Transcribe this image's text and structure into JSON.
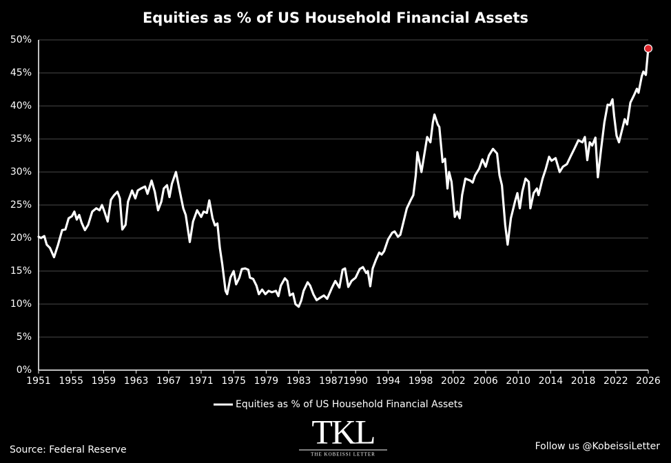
{
  "chart_data": {
    "type": "line",
    "title": "Equities as % of US Household Financial Assets",
    "xlim": [
      1951,
      2026
    ],
    "xticks": [
      1951,
      1955,
      1959,
      1963,
      1967,
      1971,
      1975,
      1979,
      1983,
      1987,
      1990,
      1994,
      1998,
      2002,
      2006,
      2010,
      2014,
      2018,
      2022,
      2026
    ],
    "ylim": [
      0,
      50
    ],
    "yticks": [
      {
        "value": 0,
        "label": "0%"
      },
      {
        "value": 5,
        "label": "5%"
      },
      {
        "value": 10,
        "label": "10%"
      },
      {
        "value": 15,
        "label": "15%"
      },
      {
        "value": 20,
        "label": "20%"
      },
      {
        "value": 25,
        "label": "25%"
      },
      {
        "value": 30,
        "label": "30%"
      },
      {
        "value": 35,
        "label": "35%"
      },
      {
        "value": 40,
        "label": "40%"
      },
      {
        "value": 45,
        "label": "45%"
      },
      {
        "value": 50,
        "label": "50%"
      }
    ],
    "grid": true,
    "highlight_color": "#e0242b",
    "series": [
      {
        "name": "Equities as % of US Household Financial Assets",
        "color": "#ffffff",
        "x": [
          1951.0,
          1951.3,
          1951.7,
          1952.0,
          1952.4,
          1952.9,
          1953.4,
          1953.9,
          1954.3,
          1954.7,
          1955.1,
          1955.4,
          1955.7,
          1956.0,
          1956.3,
          1956.7,
          1957.1,
          1957.6,
          1958.1,
          1958.5,
          1958.8,
          1959.1,
          1959.5,
          1959.9,
          1960.3,
          1960.7,
          1961.0,
          1961.3,
          1961.7,
          1962.0,
          1962.5,
          1962.9,
          1963.2,
          1963.6,
          1964.1,
          1964.4,
          1964.9,
          1965.3,
          1965.7,
          1966.1,
          1966.4,
          1966.8,
          1967.1,
          1967.4,
          1967.9,
          1968.3,
          1968.8,
          1969.1,
          1969.6,
          1970.0,
          1970.5,
          1971.0,
          1971.3,
          1971.7,
          1972.0,
          1972.4,
          1972.7,
          1973.0,
          1973.3,
          1973.6,
          1974.0,
          1974.2,
          1974.6,
          1975.0,
          1975.3,
          1975.7,
          1976.0,
          1976.4,
          1976.8,
          1977.0,
          1977.4,
          1977.8,
          1978.1,
          1978.5,
          1978.9,
          1979.3,
          1979.7,
          1980.2,
          1980.5,
          1980.8,
          1981.3,
          1981.6,
          1981.9,
          1982.3,
          1982.6,
          1983.0,
          1983.3,
          1983.6,
          1984.1,
          1984.4,
          1984.8,
          1985.2,
          1985.7,
          1986.1,
          1986.5,
          1987.1,
          1987.5,
          1988.0,
          1988.4,
          1988.7,
          1989.1,
          1989.5,
          1990.0,
          1990.5,
          1990.9,
          1991.3,
          1991.5,
          1991.8,
          1992.1,
          1992.5,
          1992.9,
          1993.2,
          1993.5,
          1994.0,
          1994.5,
          1994.8,
          1995.2,
          1995.5,
          1995.9,
          1996.3,
          1996.8,
          1997.1,
          1997.4,
          1997.6,
          1998.1,
          1998.8,
          1999.2,
          1999.5,
          1999.7,
          2000.1,
          2000.3,
          2000.7,
          2001.0,
          2001.3,
          2001.5,
          2001.8,
          2002.2,
          2002.5,
          2002.8,
          2003.1,
          2003.5,
          2004.1,
          2004.4,
          2004.7,
          2005.2,
          2005.6,
          2006.0,
          2006.4,
          2006.9,
          2007.4,
          2007.7,
          2008.0,
          2008.4,
          2008.7,
          2009.1,
          2009.6,
          2009.9,
          2010.2,
          2010.5,
          2010.9,
          2011.3,
          2011.5,
          2011.9,
          2012.3,
          2012.5,
          2013.0,
          2013.4,
          2013.8,
          2014.1,
          2014.6,
          2015.1,
          2015.5,
          2016.0,
          2016.5,
          2016.9,
          2017.4,
          2017.9,
          2018.2,
          2018.5,
          2018.8,
          2019.1,
          2019.5,
          2019.8,
          2020.2,
          2020.6,
          2021.0,
          2021.3,
          2021.6,
          2021.8,
          2022.1,
          2022.4,
          2022.7,
          2023.1,
          2023.4,
          2023.8,
          2024.2,
          2024.6,
          2024.8,
          2025.2,
          2025.4,
          2025.7,
          2026.0
        ],
        "values": [
          20.2,
          20,
          20.3,
          19,
          18.5,
          17.1,
          19,
          21.2,
          21.3,
          23,
          23.3,
          24,
          22.8,
          23.5,
          22.3,
          21.2,
          22,
          24,
          24.5,
          24.2,
          25,
          24,
          22.5,
          25.8,
          26.5,
          27,
          26,
          21.3,
          22,
          25.5,
          27.2,
          26,
          27.2,
          27.5,
          27.8,
          26.7,
          28.7,
          27,
          24.2,
          25.5,
          27.5,
          28,
          26.2,
          28.2,
          30,
          27.5,
          24.5,
          23.5,
          19.4,
          22.5,
          24.2,
          23.2,
          24,
          23.8,
          25.7,
          23,
          21.9,
          22.2,
          18.5,
          16,
          12,
          11.5,
          14,
          15,
          13,
          14,
          15.3,
          15.4,
          15.2,
          14,
          13.8,
          12.8,
          11.5,
          12.2,
          11.5,
          12,
          11.8,
          12,
          11.2,
          12.8,
          13.9,
          13.5,
          11.3,
          11.6,
          10,
          9.6,
          10.5,
          12,
          13.3,
          12.8,
          11.5,
          10.6,
          11,
          11.3,
          10.8,
          12.5,
          13.5,
          12.5,
          15.2,
          15.4,
          12.6,
          13.5,
          14,
          15.3,
          15.6,
          14.7,
          15,
          12.7,
          15.4,
          16.7,
          17.8,
          17.5,
          18,
          19.8,
          20.8,
          21,
          20.2,
          20.5,
          22.5,
          24.5,
          25.8,
          26.5,
          29.5,
          33,
          30,
          35.3,
          34.5,
          37.5,
          38.7,
          37.2,
          36.8,
          31.5,
          32,
          27.5,
          30,
          28.5,
          23.2,
          24,
          23,
          26.5,
          29,
          28.7,
          28.4,
          29.5,
          30.5,
          31.9,
          30.8,
          32.5,
          33.5,
          32.8,
          29.5,
          28,
          22,
          19,
          23,
          25.5,
          26.8,
          24.5,
          27,
          29,
          28.5,
          24.5,
          26.8,
          27.5,
          26.5,
          29,
          30.5,
          32.3,
          31.7,
          32.1,
          30,
          30.8,
          31.2,
          32.5,
          33.5,
          34.8,
          34.5,
          35.3,
          31.8,
          34.5,
          34,
          35.2,
          29.2,
          33.5,
          37.5,
          40.2,
          40.1,
          41,
          38.5,
          35.5,
          34.5,
          36,
          38,
          37.2,
          40.5,
          41.5,
          42.6,
          42,
          44.5,
          45.2,
          44.7,
          48.7
        ]
      }
    ]
  },
  "footer": {
    "source": "Source: Federal Reserve",
    "follow": "Follow us @KobeissiLetter",
    "logo": "TKL",
    "logo_subtitle": "THE KOBEISSI LETTER"
  }
}
